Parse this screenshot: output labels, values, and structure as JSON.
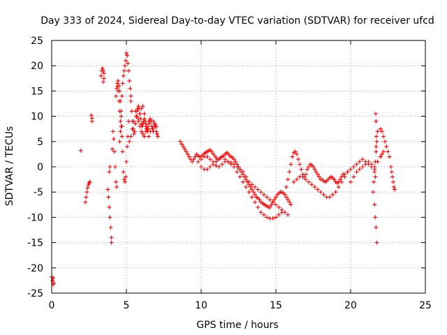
{
  "chart_data": {
    "type": "scatter",
    "title": "Day 333 of 2024, Sidereal Day-to-day VTEC variation (SDTVAR) for receiver ufcd",
    "xlabel": "GPS time / hours",
    "ylabel": "SDTVAR / TECUs",
    "xlim": [
      0,
      25
    ],
    "ylim": [
      -25,
      25
    ],
    "xticks": [
      0,
      5,
      10,
      15,
      20,
      25
    ],
    "yticks": [
      -25,
      -20,
      -15,
      -10,
      -5,
      0,
      5,
      10,
      15,
      20,
      25
    ],
    "xtick_labels": [
      "0",
      "5",
      "10",
      "15",
      "20",
      "25"
    ],
    "ytick_labels": [
      "-25",
      "-20",
      "-15",
      "-10",
      "-5",
      "0",
      "5",
      "10",
      "15",
      "20",
      "25"
    ],
    "grid": true,
    "marker": "+",
    "color": "#ff0000",
    "series": [
      {
        "name": "SDTVAR",
        "x": [
          0.0,
          0.05,
          0.1,
          0.1,
          0.15,
          1.95,
          2.25,
          2.3,
          2.35,
          2.4,
          2.45,
          2.5,
          2.55,
          2.65,
          2.7,
          2.7,
          3.3,
          3.35,
          3.4,
          3.45,
          3.5,
          3.5,
          3.45,
          3.75,
          3.8,
          3.85,
          3.9,
          3.95,
          4.0,
          4.0,
          3.9,
          3.85,
          4.05,
          4.1,
          4.15,
          4.2,
          4.25,
          4.3,
          4.35,
          4.4,
          4.45,
          4.5,
          4.55,
          4.6,
          4.65,
          4.7,
          4.3,
          4.35,
          4.4,
          4.45,
          4.5,
          4.55,
          4.6,
          4.65,
          4.7,
          4.75,
          4.8,
          4.85,
          4.9,
          4.95,
          5.0,
          5.05,
          5.1,
          5.15,
          4.55,
          4.6,
          4.65,
          4.7,
          4.75,
          4.8,
          4.85,
          4.9,
          4.95,
          5.0,
          5.05,
          5.1,
          5.15,
          5.2,
          5.25,
          5.3,
          5.3,
          5.35,
          5.4,
          5.45,
          5.5,
          5.55,
          5.6,
          5.65,
          5.7,
          5.75,
          5.8,
          5.85,
          5.9,
          5.95,
          6.0,
          6.05,
          6.1,
          6.15,
          6.2,
          6.25,
          6.3,
          6.35,
          6.4,
          6.45,
          6.5,
          6.55,
          6.6,
          6.65,
          6.7,
          6.75,
          6.8,
          6.85,
          6.9,
          6.95,
          7.0,
          7.05,
          7.1,
          5.8,
          5.9,
          6.0,
          6.1,
          6.2,
          6.3,
          6.4,
          6.5,
          6.6,
          6.7,
          6.8,
          6.9,
          7.0,
          5.2,
          5.3,
          5.4,
          5.5,
          5.6,
          5.7,
          5.8,
          5.9,
          6.0,
          6.1,
          6.2,
          6.3,
          6.4,
          6.5,
          8.6,
          8.7,
          8.8,
          8.9,
          9.0,
          9.1,
          9.2,
          9.3,
          9.4,
          9.5,
          9.6,
          9.7,
          9.8,
          9.9,
          10.0,
          10.1,
          10.2,
          10.3,
          10.4,
          10.5,
          10.6,
          10.7,
          10.8,
          10.9,
          11.0,
          11.1,
          11.2,
          11.3,
          11.4,
          11.5,
          11.6,
          11.7,
          11.8,
          11.9,
          12.0,
          12.1,
          12.2,
          12.3,
          12.4,
          12.5,
          12.6,
          12.7,
          12.8,
          12.9,
          13.0,
          13.1,
          13.2,
          13.3,
          13.4,
          13.5,
          13.6,
          13.7,
          13.8,
          13.9,
          14.0,
          14.1,
          14.2,
          14.3,
          14.4,
          14.5,
          14.6,
          14.7,
          14.8,
          14.9,
          15.0,
          15.1,
          15.2,
          15.3,
          15.4,
          15.5,
          15.6,
          15.7,
          15.8,
          15.9,
          16.0,
          10.0,
          10.2,
          10.4,
          10.6,
          10.8,
          11.0,
          11.2,
          11.4,
          11.6,
          11.8,
          12.0,
          12.2,
          12.4,
          12.6,
          12.8,
          13.0,
          13.2,
          13.4,
          13.6,
          13.8,
          14.0,
          14.2,
          14.4,
          14.6,
          14.8,
          15.0,
          15.2,
          15.4,
          15.6,
          15.8,
          9.8,
          10.0,
          10.2,
          10.4,
          10.6,
          10.8,
          11.0,
          11.2,
          11.4,
          11.6,
          11.8,
          12.0,
          12.2,
          12.4,
          12.6,
          12.8,
          13.0,
          13.2,
          13.4,
          13.6,
          13.8,
          14.0,
          14.2,
          14.4,
          14.6,
          14.8,
          15.0,
          15.2,
          15.4,
          15.7,
          15.8,
          15.9,
          16.0,
          16.1,
          16.2,
          16.3,
          16.4,
          16.5,
          16.6,
          16.7,
          16.8,
          16.9,
          17.0,
          17.1,
          17.2,
          17.3,
          17.4,
          17.5,
          17.6,
          17.7,
          17.8,
          17.9,
          18.0,
          18.1,
          18.2,
          18.3,
          18.4,
          18.5,
          18.6,
          18.7,
          18.8,
          18.9,
          19.0,
          19.1,
          19.2,
          19.3,
          19.4,
          19.5,
          16.2,
          16.4,
          16.6,
          16.8,
          17.0,
          17.2,
          17.4,
          17.6,
          17.8,
          18.0,
          18.2,
          18.4,
          18.6,
          18.8,
          19.0,
          19.2,
          19.4,
          19.6,
          19.8,
          19.6,
          19.8,
          20.0,
          20.2,
          20.4,
          20.6,
          20.8,
          21.0,
          21.2,
          21.4,
          21.6,
          21.8,
          22.0,
          22.1,
          22.2,
          20.0,
          20.2,
          20.4,
          20.6,
          20.8,
          21.0,
          21.2,
          21.4,
          21.6,
          21.8,
          22.0,
          21.5,
          21.55,
          21.6,
          21.65,
          21.7,
          21.75,
          21.8,
          21.6,
          21.65,
          21.7,
          21.75,
          21.7,
          21.68,
          21.72,
          21.66,
          21.7,
          22.0,
          22.1,
          22.2,
          22.3,
          22.4,
          22.5,
          22.6,
          22.7,
          22.75,
          22.8,
          22.85,
          22.9,
          22.95
        ],
        "y": [
          -21.8,
          -22.5,
          -23.3,
          -22.0,
          -23.0,
          3.2,
          -7.0,
          -6.0,
          -5.0,
          -4.2,
          -3.6,
          -3.2,
          -3.0,
          10.2,
          9.6,
          9.0,
          18.0,
          19.0,
          19.5,
          19.0,
          17.5,
          18.5,
          16.8,
          -4.5,
          -6.0,
          -8.0,
          -10.0,
          -12.0,
          -14.0,
          -15.0,
          0.0,
          -1.0,
          3.5,
          7.0,
          5.5,
          3.0,
          0.0,
          -3.0,
          -4.0,
          16.0,
          15.0,
          13.0,
          11.0,
          9.0,
          8.0,
          6.0,
          14.0,
          15.5,
          16.5,
          17.0,
          16.0,
          15.0,
          13.0,
          11.0,
          8.0,
          3.0,
          -1.0,
          -2.5,
          -3.0,
          -2.0,
          1.0,
          4.0,
          6.0,
          9.0,
          5.0,
          7.0,
          10.0,
          14.0,
          16.5,
          18.0,
          19.0,
          20.0,
          21.0,
          22.5,
          22.0,
          20.5,
          19.0,
          17.0,
          15.5,
          14.0,
          13.0,
          11.0,
          9.0,
          7.5,
          6.5,
          7.0,
          8.5,
          10.0,
          11.0,
          11.5,
          12.0,
          11.5,
          10.5,
          9.5,
          8.5,
          8.0,
          8.5,
          9.0,
          9.5,
          9.0,
          8.0,
          7.5,
          7.0,
          7.5,
          8.5,
          9.0,
          9.5,
          9.0,
          8.0,
          7.5,
          7.0,
          8.0,
          8.5,
          8.0,
          7.0,
          6.5,
          6.0,
          9.5,
          10.5,
          11.5,
          12.0,
          10.5,
          8.5,
          7.0,
          6.0,
          7.0,
          8.0,
          9.0,
          8.5,
          8.0,
          5.0,
          6.0,
          7.5,
          9.0,
          11.0,
          10.0,
          9.0,
          8.0,
          7.0,
          6.5,
          6.0,
          7.0,
          8.0,
          9.0,
          5.0,
          4.5,
          4.0,
          3.5,
          3.0,
          2.5,
          2.0,
          1.5,
          1.0,
          1.5,
          2.0,
          2.5,
          2.2,
          2.0,
          2.0,
          2.3,
          2.6,
          2.8,
          3.0,
          3.2,
          3.3,
          3.0,
          2.6,
          2.2,
          1.8,
          1.5,
          1.5,
          1.8,
          2.0,
          2.2,
          2.5,
          2.8,
          2.6,
          2.2,
          2.0,
          1.8,
          1.5,
          1.0,
          0.5,
          0.0,
          -0.5,
          -1.0,
          -1.5,
          -2.0,
          -2.5,
          -3.0,
          -3.5,
          -4.0,
          -4.5,
          -5.0,
          -5.5,
          -6.0,
          -6.2,
          -6.5,
          -7.0,
          -7.2,
          -7.4,
          -7.6,
          -7.8,
          -8.0,
          -8.0,
          -7.5,
          -7.0,
          -6.5,
          -6.0,
          -5.5,
          -5.2,
          -5.0,
          -5.0,
          -5.2,
          -5.5,
          -6.0,
          -6.5,
          -7.0,
          -7.5,
          0.0,
          -0.5,
          -0.5,
          0.0,
          0.5,
          0.2,
          0.0,
          0.5,
          1.0,
          1.0,
          0.8,
          0.5,
          0.0,
          -0.5,
          -1.0,
          -2.0,
          -3.0,
          -3.5,
          -4.0,
          -4.5,
          -5.0,
          -5.5,
          -6.0,
          -6.5,
          -7.0,
          -7.5,
          -8.0,
          -8.5,
          -9.0,
          -9.5,
          1.0,
          1.5,
          2.0,
          2.0,
          1.5,
          1.0,
          1.0,
          1.5,
          2.0,
          1.5,
          1.0,
          0.5,
          0.0,
          -1.0,
          -2.0,
          -3.0,
          -4.0,
          -5.0,
          -6.0,
          -7.0,
          -8.0,
          -9.0,
          -9.5,
          -10.0,
          -10.2,
          -10.2,
          -10.0,
          -9.5,
          -9.0,
          -4.0,
          -2.5,
          -1.0,
          0.5,
          2.0,
          2.8,
          3.0,
          2.5,
          1.5,
          0.5,
          -0.5,
          -1.5,
          -2.0,
          -1.5,
          -0.5,
          0.0,
          0.5,
          0.3,
          0.0,
          -0.5,
          -1.0,
          -1.5,
          -2.0,
          -2.5,
          -2.5,
          -2.8,
          -3.0,
          -2.8,
          -2.5,
          -2.2,
          -2.0,
          -2.2,
          -2.5,
          -3.0,
          -3.2,
          -3.0,
          -2.5,
          -2.0,
          -1.5,
          -3.0,
          -2.5,
          -2.0,
          -2.0,
          -2.5,
          -3.0,
          -3.5,
          -4.0,
          -4.5,
          -5.0,
          -5.5,
          -6.0,
          -6.0,
          -5.5,
          -5.0,
          -4.0,
          -3.0,
          -2.0,
          -1.0,
          -1.5,
          -1.0,
          -0.5,
          0.0,
          0.5,
          1.0,
          1.5,
          1.0,
          0.5,
          0.0,
          -0.5,
          1.0,
          2.0,
          2.5,
          3.0,
          -3.0,
          -2.0,
          -1.0,
          -0.5,
          0.0,
          0.5,
          1.0,
          0.5,
          0.0,
          1.0,
          2.0,
          -5.0,
          -3.0,
          -1.0,
          1.0,
          3.0,
          5.0,
          7.0,
          -7.5,
          -10.0,
          -12.0,
          -15.0,
          9.0,
          10.5,
          6.0,
          -2.0,
          4.0,
          7.5,
          7.0,
          6.0,
          5.0,
          4.0,
          3.0,
          2.0,
          0.0,
          -1.0,
          -2.0,
          -3.0,
          -4.0,
          -4.5
        ]
      }
    ]
  }
}
